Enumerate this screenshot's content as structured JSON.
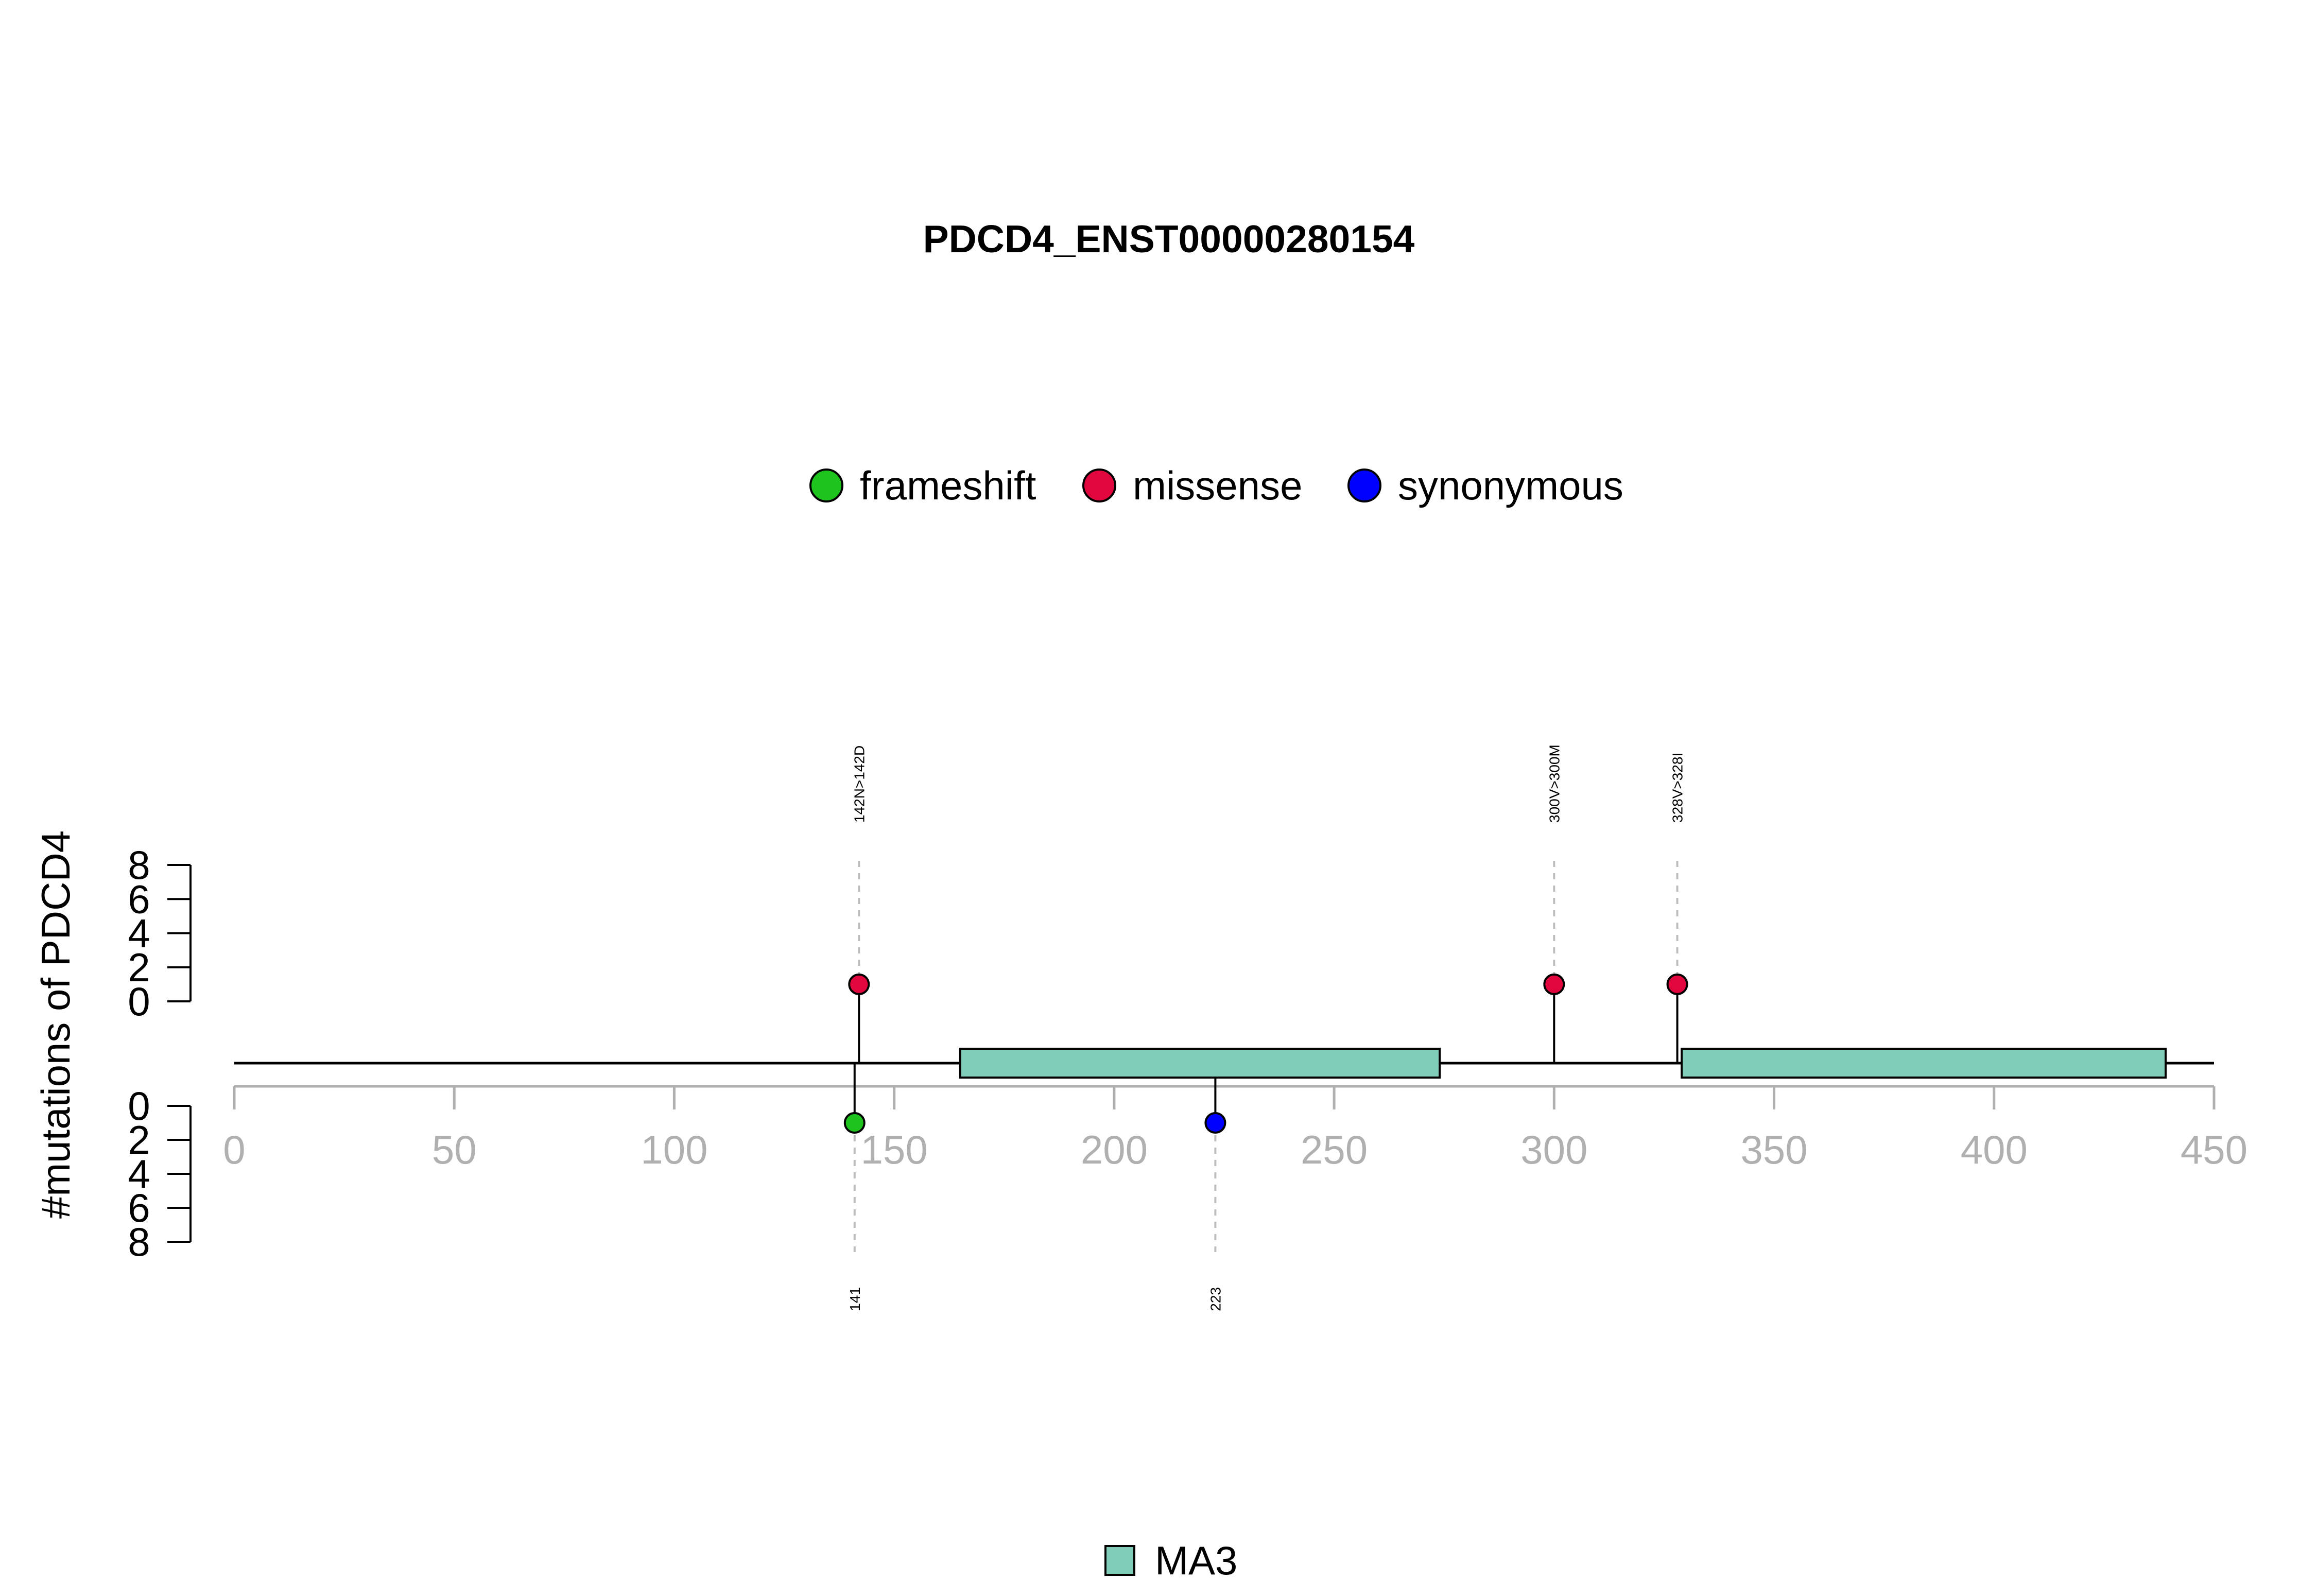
{
  "chart_data": {
    "type": "lollipop",
    "title": "PDCD4_ENST00000280154",
    "ylabel": "#mutations of PDCD4",
    "xlim": [
      0,
      450
    ],
    "x_ticks": [
      "0",
      "50",
      "100",
      "150",
      "200",
      "250",
      "300",
      "350",
      "400",
      "450"
    ],
    "y_ticks": [
      "0",
      "2",
      "4",
      "6",
      "8"
    ],
    "ylim": [
      0,
      8
    ],
    "legend": [
      {
        "name": "frameshift",
        "color": "#1ec31e"
      },
      {
        "name": "missense",
        "color": "#e2063f"
      },
      {
        "name": "synonymous",
        "color": "#0000ff"
      }
    ],
    "mutations_top": [
      {
        "position": 142,
        "count": 1,
        "type": "missense",
        "label": "142N>142D"
      },
      {
        "position": 300,
        "count": 1,
        "type": "missense",
        "label": "300V>300M"
      },
      {
        "position": 328,
        "count": 1,
        "type": "missense",
        "label": "328V>328I"
      }
    ],
    "mutations_bottom": [
      {
        "position": 141,
        "count": 1,
        "type": "frameshift",
        "label": "141"
      },
      {
        "position": 223,
        "count": 1,
        "type": "synonymous",
        "label": "223"
      }
    ],
    "domains": [
      {
        "name": "MA3",
        "start": 165,
        "end": 274,
        "color": "#80cdb9"
      },
      {
        "name": "MA3",
        "start": 329,
        "end": 439,
        "color": "#80cdb9"
      }
    ],
    "domain_legend": [
      {
        "name": "MA3",
        "color": "#80cdb9"
      }
    ]
  }
}
